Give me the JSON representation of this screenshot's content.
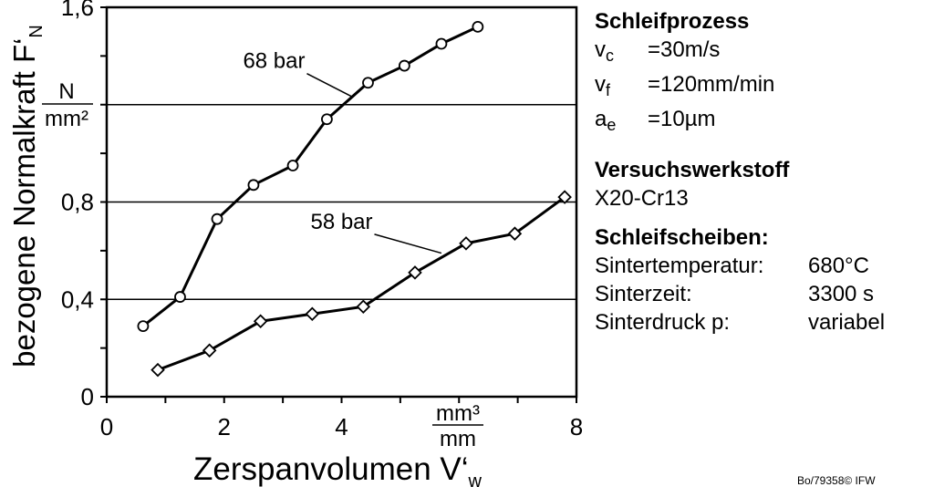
{
  "chart_data": {
    "type": "line",
    "xlabel": "Zerspanvolumen V‘",
    "xlabel_sub": "w",
    "x_unit_num": "mm³",
    "x_unit_den": "mm",
    "ylabel": "bezogene Normalkraft F‘",
    "ylabel_sub": "N",
    "y_unit_num": "N",
    "y_unit_den": "mm²",
    "xlim": [
      0,
      8
    ],
    "ylim": [
      0,
      1.6
    ],
    "xticks": [
      {
        "v": 0,
        "label": "0"
      },
      {
        "v": 2,
        "label": "2"
      },
      {
        "v": 4,
        "label": "4"
      },
      {
        "v": 8,
        "label": "8"
      }
    ],
    "yticks": [
      {
        "v": 0,
        "label": "0"
      },
      {
        "v": 0.4,
        "label": "0,4"
      },
      {
        "v": 0.8,
        "label": "0,8"
      },
      {
        "v": 1.6,
        "label": "1,6"
      }
    ],
    "gridlines_y": [
      0.4,
      0.8,
      1.2
    ],
    "series": [
      {
        "name": "68 bar",
        "marker": "circle",
        "x": [
          0.62,
          1.25,
          1.88,
          2.5,
          3.17,
          3.75,
          4.45,
          5.07,
          5.7,
          6.32
        ],
        "y": [
          0.29,
          0.41,
          0.73,
          0.87,
          0.95,
          1.14,
          1.29,
          1.36,
          1.45,
          1.52
        ],
        "label_at": [
          2.85,
          1.35
        ],
        "leader_to": [
          4.2,
          1.23
        ]
      },
      {
        "name": "58 bar",
        "marker": "diamond",
        "x": [
          0.87,
          1.75,
          2.62,
          3.5,
          4.37,
          5.25,
          6.12,
          6.95,
          7.8
        ],
        "y": [
          0.11,
          0.19,
          0.31,
          0.34,
          0.37,
          0.51,
          0.63,
          0.67,
          0.82
        ],
        "label_at": [
          4.0,
          0.69
        ],
        "leader_to": [
          5.7,
          0.59
        ]
      }
    ]
  },
  "info": {
    "process_title": "Schleifprozess",
    "params": [
      {
        "sym": "v",
        "sub": "c",
        "val": "=30m/s"
      },
      {
        "sym": "v",
        "sub": "f",
        "val": "=120mm/min"
      },
      {
        "sym": "a",
        "sub": "e",
        "val": "=10µm"
      }
    ],
    "material_title": "Versuchswerkstoff",
    "material": "X20-Cr13",
    "wheels_title": "Schleifscheiben:",
    "wheels": [
      {
        "label": "Sintertemperatur:",
        "val": "680°C"
      },
      {
        "label": "Sinterzeit:",
        "val": "3300 s"
      },
      {
        "label": "Sinterdruck p:",
        "val": "variabel"
      }
    ]
  },
  "credit": "Bo/79358© IFW"
}
